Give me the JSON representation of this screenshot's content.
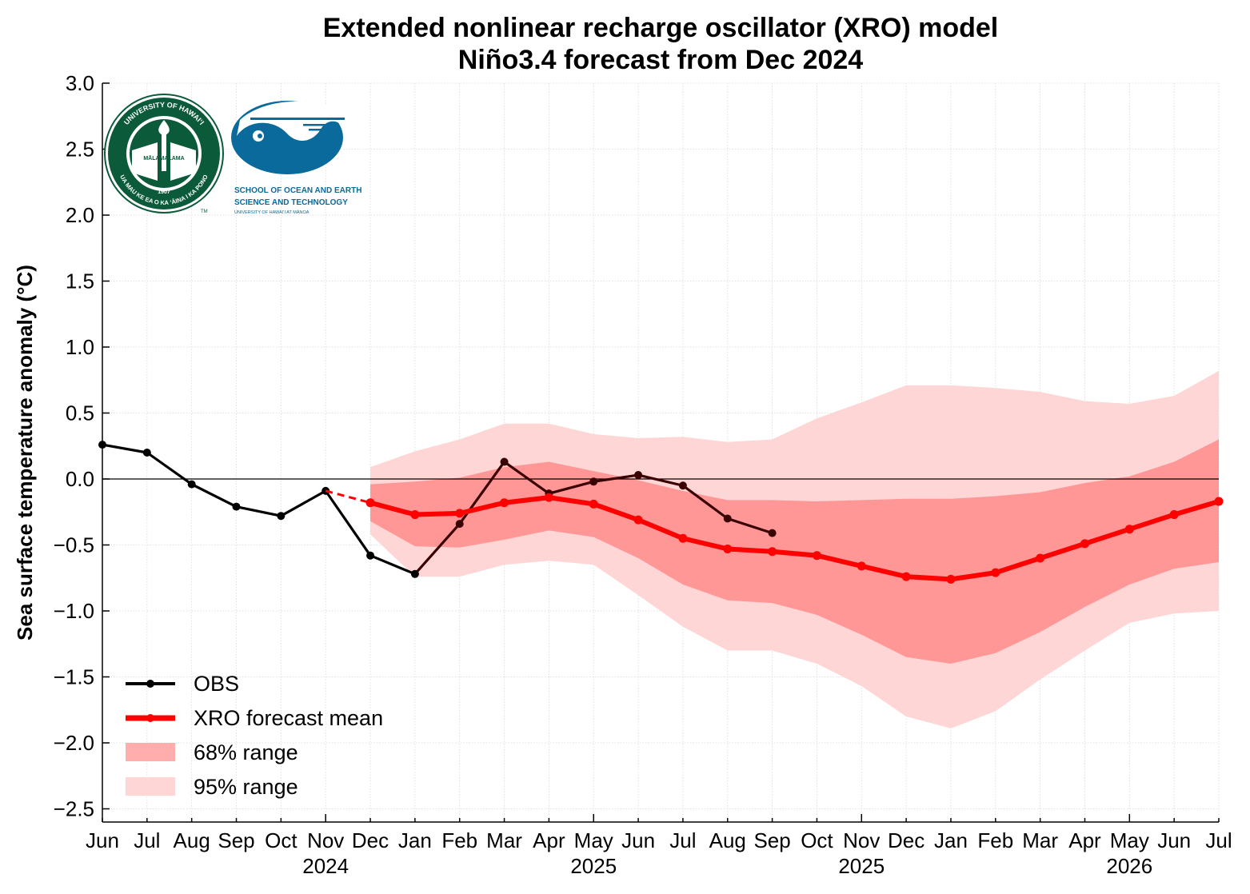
{
  "chart_data": {
    "type": "line",
    "title": "Extended nonlinear recharge oscillator (XRO) model",
    "subtitle": "Niño3.4 forecast from Dec 2024",
    "xlabel": "",
    "ylabel": "Sea surface temperature anomaly (°C)",
    "ylim": [
      -2.6,
      3.0
    ],
    "yticks": [
      3.0,
      2.5,
      2.0,
      1.5,
      1.0,
      0.5,
      0.0,
      -0.5,
      -1.0,
      -1.5,
      -2.0,
      -2.5
    ],
    "ytick_labels": [
      "3.0",
      "2.5",
      "2.0",
      "1.5",
      "1.0",
      "0.5",
      "0.0",
      "−0.5",
      "−1.0",
      "−1.5",
      "−2.0",
      "−2.5"
    ],
    "x_months": [
      "Jun",
      "Jul",
      "Aug",
      "Sep",
      "Oct",
      "Nov",
      "Dec",
      "Jan",
      "Feb",
      "Mar",
      "Apr",
      "May",
      "Jun",
      "Jul",
      "Aug",
      "Sep",
      "Oct",
      "Nov",
      "Dec",
      "Jan",
      "Feb",
      "Mar",
      "Apr",
      "May",
      "Jun",
      "Jul"
    ],
    "x_years": [
      {
        "index": 5,
        "label": "2024"
      },
      {
        "index": 11,
        "label": "2025"
      },
      {
        "index": 17,
        "label": "2025"
      },
      {
        "index": 23,
        "label": "2026"
      }
    ],
    "grid": true,
    "legend_position": "lower-left",
    "colors": {
      "obs": "#000000",
      "obs_recent": "#3a0000",
      "forecast": "#ff0000",
      "range68": "#ff9797",
      "range95": "#ffd6d6"
    },
    "series": [
      {
        "name": "OBS",
        "x_index": [
          0,
          1,
          2,
          3,
          4,
          5,
          6,
          7,
          8,
          9,
          10,
          11,
          12,
          13,
          14,
          15
        ],
        "values": [
          0.26,
          0.2,
          -0.04,
          -0.21,
          -0.28,
          -0.09,
          -0.58,
          -0.72,
          -0.34,
          0.13,
          -0.11,
          -0.02,
          0.03,
          -0.05,
          -0.3,
          -0.41
        ]
      },
      {
        "name": "XRO forecast mean",
        "x_index": [
          6,
          7,
          8,
          9,
          10,
          11,
          12,
          13,
          14,
          15,
          16,
          17,
          18,
          19,
          20,
          21,
          22,
          23,
          24,
          25
        ],
        "values": [
          -0.18,
          -0.27,
          -0.26,
          -0.18,
          -0.14,
          -0.19,
          -0.31,
          -0.45,
          -0.53,
          -0.55,
          -0.58,
          -0.66,
          -0.74,
          -0.76,
          -0.71,
          -0.6,
          -0.49,
          -0.38,
          -0.27,
          -0.17
        ],
        "connector_from": {
          "x_index": 5,
          "value": -0.09
        }
      },
      {
        "name": "68% range",
        "x_index": [
          6,
          7,
          8,
          9,
          10,
          11,
          12,
          13,
          14,
          15,
          16,
          17,
          18,
          19,
          20,
          21,
          22,
          23,
          24,
          25
        ],
        "upper": [
          -0.04,
          -0.02,
          0.01,
          0.09,
          0.13,
          0.06,
          -0.01,
          -0.09,
          -0.16,
          -0.16,
          -0.17,
          -0.16,
          -0.15,
          -0.15,
          -0.13,
          -0.1,
          -0.03,
          0.02,
          0.13,
          0.3
        ],
        "lower": [
          -0.32,
          -0.51,
          -0.52,
          -0.46,
          -0.39,
          -0.44,
          -0.6,
          -0.8,
          -0.92,
          -0.94,
          -1.03,
          -1.18,
          -1.35,
          -1.4,
          -1.32,
          -1.16,
          -0.97,
          -0.8,
          -0.68,
          -0.63
        ]
      },
      {
        "name": "95% range",
        "x_index": [
          6,
          7,
          8,
          9,
          10,
          11,
          12,
          13,
          14,
          15,
          16,
          17,
          18,
          19,
          20,
          21,
          22,
          23,
          24,
          25
        ],
        "upper": [
          0.09,
          0.21,
          0.3,
          0.42,
          0.42,
          0.34,
          0.31,
          0.32,
          0.28,
          0.3,
          0.46,
          0.58,
          0.71,
          0.71,
          0.69,
          0.66,
          0.59,
          0.57,
          0.63,
          0.82
        ],
        "lower": [
          -0.42,
          -0.74,
          -0.74,
          -0.65,
          -0.62,
          -0.65,
          -0.88,
          -1.12,
          -1.3,
          -1.3,
          -1.4,
          -1.57,
          -1.8,
          -1.89,
          -1.76,
          -1.52,
          -1.3,
          -1.09,
          -1.02,
          -1.0
        ]
      }
    ]
  },
  "legend": {
    "obs_label": "OBS",
    "forecast_label": "XRO forecast mean",
    "range68_label": "68% range",
    "range95_label": "95% range"
  },
  "logos": {
    "uh_seal_top": "UNIVERSITY OF HAWAIʻI",
    "uh_seal_bottom": "UA MAU KE EA O KA ʻĀINA I KA PONO",
    "uh_seal_ribbon": "MĀLAMALAMA",
    "uh_seal_year": "1907",
    "uh_seal_tm": "TM",
    "soest_line1": "SCHOOL OF OCEAN AND EARTH",
    "soest_line2": "SCIENCE AND TECHNOLOGY",
    "soest_line3": "UNIVERSITY OF HAWAIʻI AT MĀNOA"
  }
}
